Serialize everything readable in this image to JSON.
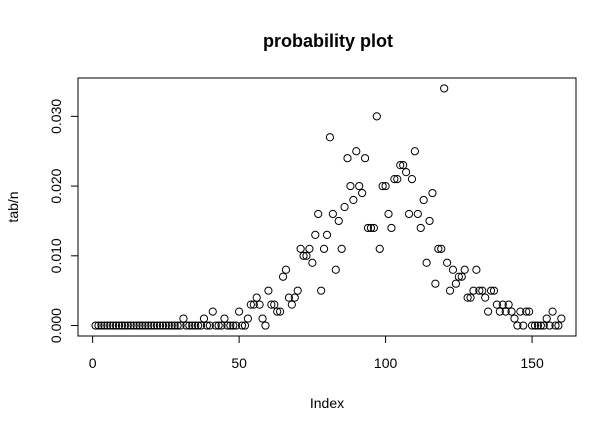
{
  "chart_data": {
    "type": "scatter",
    "title": "probability plot",
    "xlabel": "Index",
    "ylabel": "tab/n",
    "xlim": [
      -5,
      165
    ],
    "ylim": [
      -0.0015,
      0.0355
    ],
    "xticks": [
      0,
      50,
      100,
      150
    ],
    "xtick_labels": [
      "0",
      "50",
      "100",
      "150"
    ],
    "yticks": [
      0,
      0.01,
      0.02,
      0.03
    ],
    "ytick_labels": [
      "0.000",
      "0.010",
      "0.020",
      "0.030"
    ],
    "grid": false,
    "legend": "none",
    "marker": "open-circle",
    "x": [
      1,
      2,
      3,
      4,
      5,
      6,
      7,
      8,
      9,
      10,
      11,
      12,
      13,
      14,
      15,
      16,
      17,
      18,
      19,
      20,
      21,
      22,
      23,
      24,
      25,
      26,
      27,
      28,
      29,
      30,
      31,
      32,
      33,
      34,
      35,
      36,
      37,
      38,
      39,
      40,
      41,
      42,
      43,
      44,
      45,
      46,
      47,
      48,
      49,
      50,
      51,
      52,
      53,
      54,
      55,
      56,
      57,
      58,
      59,
      60,
      61,
      62,
      63,
      64,
      65,
      66,
      67,
      68,
      69,
      70,
      71,
      72,
      73,
      74,
      75,
      76,
      77,
      78,
      79,
      80,
      81,
      82,
      83,
      84,
      85,
      86,
      87,
      88,
      89,
      90,
      91,
      92,
      93,
      94,
      95,
      96,
      97,
      98,
      99,
      100,
      101,
      102,
      103,
      104,
      105,
      106,
      107,
      108,
      109,
      110,
      111,
      112,
      113,
      114,
      115,
      116,
      117,
      118,
      119,
      120,
      121,
      122,
      123,
      124,
      125,
      126,
      127,
      128,
      129,
      130,
      131,
      132,
      133,
      134,
      135,
      136,
      137,
      138,
      139,
      140,
      141,
      142,
      143,
      144,
      145,
      146,
      147,
      148,
      149,
      150,
      151,
      152,
      153,
      154,
      155,
      156,
      157,
      158,
      159,
      160
    ],
    "y": [
      0,
      0,
      0,
      0,
      0,
      0,
      0,
      0,
      0,
      0,
      0,
      0,
      0,
      0,
      0,
      0,
      0,
      0,
      0,
      0,
      0,
      0,
      0,
      0,
      0,
      0,
      0,
      0,
      0,
      0,
      0.001,
      0,
      0,
      0,
      0,
      0,
      0,
      0.001,
      0,
      0,
      0.002,
      0,
      0,
      0,
      0.001,
      0,
      0,
      0,
      0,
      0.002,
      0,
      0,
      0.001,
      0.003,
      0.003,
      0.004,
      0.003,
      0.001,
      0,
      0.005,
      0.003,
      0.003,
      0.002,
      0.002,
      0.007,
      0.008,
      0.004,
      0.003,
      0.004,
      0.005,
      0.011,
      0.01,
      0.01,
      0.011,
      0.009,
      0.013,
      0.016,
      0.005,
      0.011,
      0.013,
      0.027,
      0.016,
      0.008,
      0.015,
      0.011,
      0.017,
      0.024,
      0.02,
      0.018,
      0.025,
      0.02,
      0.019,
      0.024,
      0.014,
      0.014,
      0.014,
      0.03,
      0.011,
      0.02,
      0.02,
      0.016,
      0.014,
      0.021,
      0.021,
      0.023,
      0.023,
      0.022,
      0.016,
      0.021,
      0.025,
      0.016,
      0.014,
      0.018,
      0.009,
      0.015,
      0.019,
      0.006,
      0.011,
      0.011,
      0.034,
      0.009,
      0.005,
      0.008,
      0.006,
      0.007,
      0.007,
      0.008,
      0.004,
      0.004,
      0.005,
      0.008,
      0.005,
      0.005,
      0.004,
      0.002,
      0.005,
      0.005,
      0.003,
      0.002,
      0.003,
      0.002,
      0.003,
      0.002,
      0.001,
      0,
      0.002,
      0,
      0.002,
      0.002,
      0,
      0,
      0,
      0,
      0,
      0.001,
      0,
      0.002,
      0,
      0,
      0.001
    ]
  }
}
